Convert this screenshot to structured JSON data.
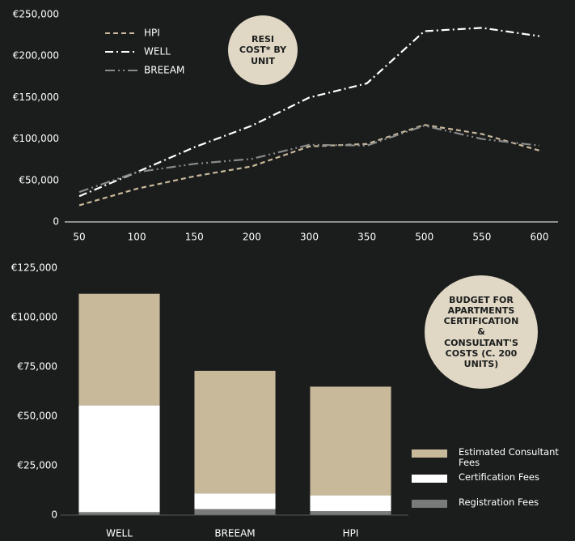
{
  "chart_data": [
    {
      "type": "line",
      "annotation": "RESI COST* BY UNIT",
      "categories": [
        "50",
        "100",
        "150",
        "200",
        "300",
        "350",
        "500",
        "550",
        "600"
      ],
      "ylim": [
        0,
        250000
      ],
      "yticks": [
        0,
        {
          "value": 50000,
          "label": "€50,000"
        },
        {
          "value": 100000,
          "label": "€100,000"
        },
        {
          "value": 150000,
          "label": "€150,000"
        },
        {
          "value": 200000,
          "label": "€200,000"
        },
        {
          "value": 250000,
          "label": "€250,000"
        }
      ],
      "legend": "upper left",
      "series": [
        {
          "name": "HPI",
          "color": "#c8b99a",
          "dash": "6,4",
          "values": [
            20000,
            40000,
            55000,
            67000,
            91000,
            94000,
            117000,
            106000,
            86000
          ]
        },
        {
          "name": "WELL",
          "color": "#ffffff",
          "dash": "10,4,2,4",
          "values": [
            31000,
            60000,
            90000,
            116000,
            150000,
            167000,
            230000,
            234000,
            224000
          ]
        },
        {
          "name": "BREEAM",
          "color": "#8a8a8a",
          "dash": "12,4,2,4,2,4",
          "values": [
            36000,
            60000,
            70000,
            76000,
            93000,
            92000,
            116000,
            100000,
            92000
          ]
        }
      ]
    },
    {
      "type": "stacked_bar",
      "annotation": "BUDGET FOR APARTMENTS CERTIFICATION & CONSULTANT'S COSTS (C. 200 UNITS)",
      "categories": [
        "WELL",
        "BREEAM",
        "HPI"
      ],
      "ylim": [
        0,
        125000
      ],
      "yticks": [
        0,
        {
          "value": 25000,
          "label": "€25,000"
        },
        {
          "value": 50000,
          "label": "€50,000"
        },
        {
          "value": 75000,
          "label": "€75,000"
        },
        {
          "value": 100000,
          "label": "€100,000"
        },
        {
          "value": 125000,
          "label": "€125,000"
        }
      ],
      "legend": "lower right",
      "series": [
        {
          "name": "Registration Fees",
          "color": "#7a7a7a",
          "values": [
            1500,
            3000,
            2000
          ]
        },
        {
          "name": "Certification Fees",
          "color": "#ffffff",
          "values": [
            54000,
            8000,
            8000
          ]
        },
        {
          "name": "Estimated Consultant Fees",
          "color": "#c8b99a",
          "values": [
            56500,
            62000,
            55000
          ]
        }
      ]
    }
  ]
}
